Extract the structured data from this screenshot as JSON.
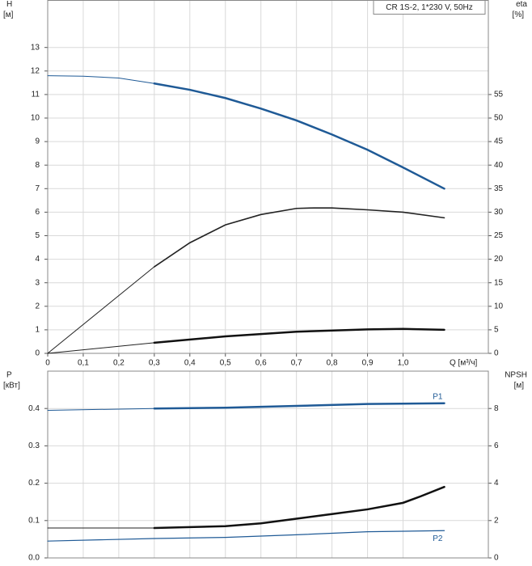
{
  "chart_data": [
    {
      "type": "line",
      "title": "CR 1S-2, 1*230 V, 50Hz",
      "ylabel": "H",
      "yunit": "[м]",
      "y2label": "eta",
      "y2unit": "[%]",
      "xlabel": "Q [м³/ч]",
      "xlim": [
        0,
        1.24
      ],
      "xticks": [
        0,
        {
          "value": 0.1,
          "label": "0,1"
        },
        {
          "value": 0.2,
          "label": "0,2"
        },
        {
          "value": 0.3,
          "label": "0,3"
        },
        {
          "value": 0.4,
          "label": "0,4"
        },
        {
          "value": 0.5,
          "label": "0,5"
        },
        {
          "value": 0.6,
          "label": "0,6"
        },
        {
          "value": 0.7,
          "label": "0,7"
        },
        {
          "value": 0.8,
          "label": "0,8"
        },
        {
          "value": 0.9,
          "label": "0,9"
        },
        {
          "value": 1.0,
          "label": "1,0"
        }
      ],
      "ylim": [
        0,
        15
      ],
      "yticks": [
        0,
        1,
        2,
        3,
        4,
        5,
        6,
        7,
        8,
        9,
        10,
        11,
        12,
        13
      ],
      "y2lim": [
        0,
        75
      ],
      "y2ticks": [
        0,
        5,
        10,
        15,
        20,
        25,
        30,
        35,
        40,
        45,
        50,
        55
      ],
      "grid": true,
      "series": [
        {
          "color": "#1f5a96",
          "width": 1,
          "x": [
            0,
            0.1,
            0.2,
            0.3
          ],
          "values": [
            11.8,
            11.78,
            11.7,
            11.47
          ]
        },
        {
          "color": "#1f5a96",
          "width": 2.5,
          "x": [
            0.3,
            0.4,
            0.5,
            0.6,
            0.7,
            0.8,
            0.9,
            1.0,
            1.116
          ],
          "values": [
            11.47,
            11.2,
            10.85,
            10.4,
            9.9,
            9.3,
            8.65,
            7.9,
            7.0
          ]
        },
        {
          "color": "#222222",
          "width": 1,
          "axis": "y2",
          "x": [
            0,
            0.3
          ],
          "values": [
            0,
            18.4
          ]
        },
        {
          "color": "#222222",
          "width": 1.6,
          "axis": "y2",
          "x": [
            0.3,
            0.4,
            0.5,
            0.6,
            0.7,
            0.75,
            0.8,
            0.9,
            1.0,
            1.116
          ],
          "values": [
            18.4,
            23.5,
            27.3,
            29.5,
            30.8,
            30.9,
            30.9,
            30.5,
            30.0,
            28.8
          ]
        },
        {
          "color": "#222222",
          "width": 1,
          "x": [
            0,
            0.3
          ],
          "values": [
            0,
            0.45
          ]
        },
        {
          "color": "#111111",
          "width": 2.5,
          "x": [
            0.3,
            0.5,
            0.7,
            0.9,
            1.0,
            1.116
          ],
          "values": [
            0.45,
            0.72,
            0.92,
            1.02,
            1.04,
            1.0
          ]
        }
      ]
    },
    {
      "type": "line",
      "ylabel": "P",
      "yunit": "[кВт]",
      "y2label": "NPSH",
      "y2unit": "[м]",
      "xlim": [
        0,
        1.24
      ],
      "ylim": [
        0,
        0.5
      ],
      "yticks": [
        {
          "value": 0,
          "label": "0.0"
        },
        0.1,
        0.2,
        0.3,
        0.4
      ],
      "y2lim": [
        0,
        10
      ],
      "y2ticks": [
        0,
        2,
        4,
        6,
        8
      ],
      "grid": true,
      "series": [
        {
          "color": "#1f5a96",
          "width": 1,
          "x": [
            0,
            0.3
          ],
          "values": [
            0.395,
            0.4
          ]
        },
        {
          "name": "P1",
          "color": "#1f5a96",
          "width": 2.5,
          "x": [
            0.3,
            0.5,
            0.7,
            0.9,
            1.116
          ],
          "values": [
            0.4,
            0.402,
            0.407,
            0.412,
            0.414
          ]
        },
        {
          "name": "P2",
          "color": "#1f5a96",
          "width": 1.2,
          "x": [
            0,
            0.3,
            0.5,
            0.7,
            0.9,
            1.116
          ],
          "values": [
            0.045,
            0.052,
            0.055,
            0.062,
            0.07,
            0.073
          ]
        },
        {
          "color": "#222222",
          "width": 1,
          "axis": "y2",
          "x": [
            0,
            0.3
          ],
          "values": [
            1.6,
            1.6
          ]
        },
        {
          "color": "#111111",
          "width": 2.5,
          "axis": "y2",
          "x": [
            0.3,
            0.5,
            0.6,
            0.7,
            0.8,
            0.9,
            1.0,
            1.05,
            1.116
          ],
          "values": [
            1.6,
            1.7,
            1.85,
            2.1,
            2.35,
            2.6,
            2.95,
            3.3,
            3.8
          ]
        }
      ]
    }
  ]
}
